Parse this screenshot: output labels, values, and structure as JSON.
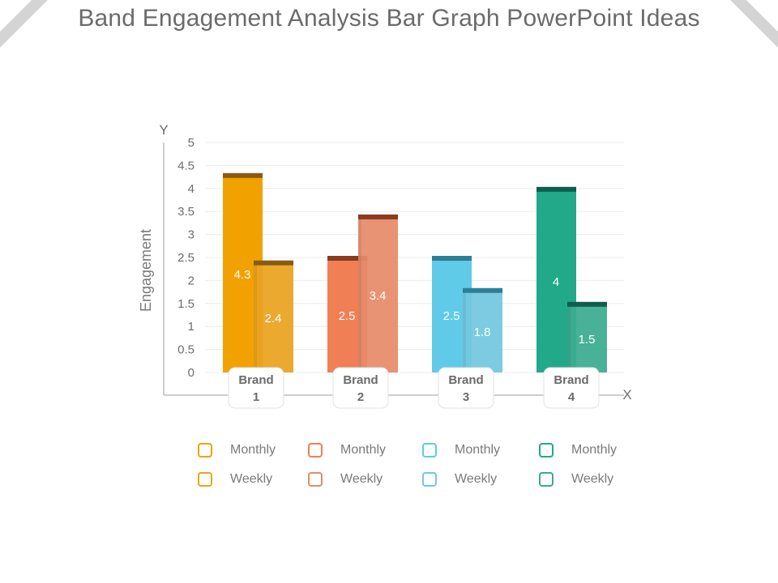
{
  "title": "Band Engagement Analysis Bar Graph PowerPoint Ideas",
  "chart_data": {
    "type": "bar",
    "categories": [
      "Brand 1",
      "Brand 2",
      "Brand 3",
      "Brand 4"
    ],
    "series": [
      {
        "name": "Monthly",
        "values": [
          4.3,
          2.5,
          2.5,
          4
        ]
      },
      {
        "name": "Weekly",
        "values": [
          2.4,
          3.4,
          1.8,
          1.5
        ]
      }
    ],
    "colors": {
      "monthly": [
        "#f2a200",
        "#f07f55",
        "#5fcbe8",
        "#22a98a"
      ],
      "weekly": [
        "#e9a31f",
        "#e58b69",
        "#72c7e0",
        "#3aab90"
      ],
      "caps_monthly": [
        "#8a5a10",
        "#8a3a1f",
        "#2d7f96",
        "#0f5e4c"
      ],
      "caps_weekly": [
        "#8a5a10",
        "#8a3a1f",
        "#2d7f96",
        "#0f5e4c"
      ]
    },
    "xlabel": "X",
    "ylabel": "Engagement",
    "yaxis_letter": "Y",
    "ylim": [
      0,
      5
    ],
    "yticks": [
      0,
      0.5,
      1,
      1.5,
      2,
      2.5,
      3,
      3.5,
      4,
      4.5,
      5
    ],
    "grid": true,
    "legend_placement": "bottom"
  }
}
